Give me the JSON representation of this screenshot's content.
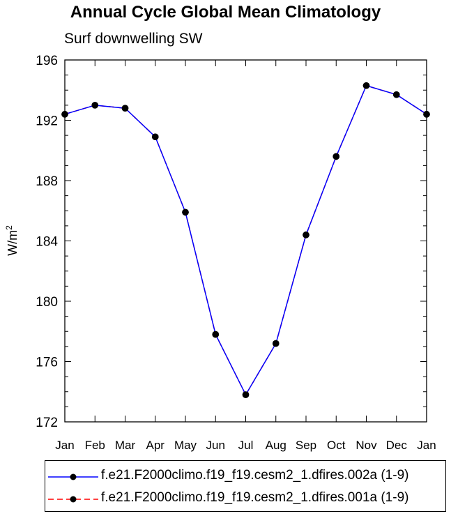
{
  "title": "Annual Cycle Global Mean Climatology",
  "subtitle": "Surf downwelling SW",
  "chart_data": {
    "type": "line",
    "title": "Annual Cycle Global Mean Climatology",
    "subtitle": "Surf downwelling SW",
    "ylabel": "W/m²",
    "ylabel_base": "W/m",
    "ylabel_sup": "2",
    "xlabel": "",
    "categories": [
      "Jan",
      "Feb",
      "Mar",
      "Apr",
      "May",
      "Jun",
      "Jul",
      "Aug",
      "Sep",
      "Oct",
      "Nov",
      "Dec",
      "Jan"
    ],
    "ylim": [
      172,
      196
    ],
    "yticks": [
      172,
      176,
      180,
      184,
      188,
      192,
      196
    ],
    "grid": false,
    "legend_placement": "bottom",
    "series": [
      {
        "name": "f.e21.F2000climo.f19_f19.cesm2_1.dfires.002a (1-9)",
        "color": "#0000ff",
        "line_style": "solid",
        "values": [
          192.4,
          193.0,
          192.8,
          190.9,
          185.9,
          177.8,
          173.8,
          177.2,
          184.4,
          189.6,
          194.3,
          193.7,
          192.4
        ]
      },
      {
        "name": "f.e21.F2000climo.f19_f19.cesm2_1.dfires.001a (1-9)",
        "color": "#ff0000",
        "line_style": "dashed",
        "values": [
          192.4,
          193.0,
          192.8,
          190.9,
          185.9,
          177.8,
          173.8,
          177.2,
          184.4,
          189.6,
          194.3,
          193.7,
          192.4
        ]
      }
    ]
  }
}
